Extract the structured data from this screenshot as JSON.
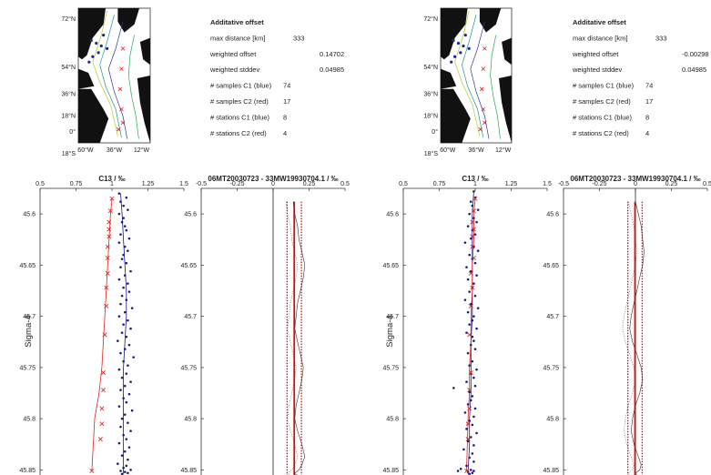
{
  "panels": [
    {
      "map": {
        "lat_ticks": [
          "72°N",
          "54°N",
          "36°N",
          "18°N",
          "0°",
          "18°S"
        ],
        "lon_ticks": [
          "60°W",
          "36°W",
          "12°W"
        ]
      },
      "stats": {
        "title": "Additative offset",
        "rows": [
          {
            "label": "max distance [km]",
            "value": "333"
          },
          {
            "label": "weighted offset",
            "value": "0.14702"
          },
          {
            "label": "weighted stddev",
            "value": "0.04985"
          },
          {
            "label": "# samples C1 (blue)",
            "value": "74"
          },
          {
            "label": "# samples C2 (red)",
            "value": "17"
          },
          {
            "label": "# stations C1 (blue)",
            "value": "8"
          },
          {
            "label": "# stations C2 (red)",
            "value": "4"
          }
        ]
      },
      "profile_title": "C13 / ‰",
      "offset_title": "06MT20030723 - 33MW19930704.1 / ‰",
      "ylabel": "Sigma-4"
    },
    {
      "map": {
        "lat_ticks": [
          "72°N",
          "54°N",
          "36°N",
          "18°N",
          "0°",
          "18°S"
        ],
        "lon_ticks": [
          "60°W",
          "36°W",
          "12°W"
        ]
      },
      "stats": {
        "title": "Additative offset",
        "rows": [
          {
            "label": "max distance [km]",
            "value": "333"
          },
          {
            "label": "weighted offset",
            "value": "-0.00298"
          },
          {
            "label": "weighted stddev",
            "value": "0.04985"
          },
          {
            "label": "# samples C1 (blue)",
            "value": "74"
          },
          {
            "label": "# samples C2 (red)",
            "value": "17"
          },
          {
            "label": "# stations C1 (blue)",
            "value": "8"
          },
          {
            "label": "# stations C2 (red)",
            "value": "4"
          }
        ]
      },
      "profile_title": "C13 / ‰",
      "offset_title": "06MT20030723 - 33MW19930704.1 / ‰",
      "ylabel": "Sigma-4"
    }
  ],
  "chart_data": [
    {
      "type": "scatter",
      "title": "C13 / ‰",
      "ylabel": "Sigma-4",
      "xlim": [
        0.5,
        1.5
      ],
      "ylim": [
        45.855,
        45.575
      ],
      "xticks": [
        "0.5",
        "0.75",
        "1",
        "1.25",
        "1.5"
      ],
      "yticks": [
        "45.6",
        "45.65",
        "45.7",
        "45.75",
        "45.8",
        "45.85"
      ],
      "series": [
        {
          "color": "#1a1a80",
          "marker": "dot",
          "x": [
            1.05,
            1.1,
            1.06,
            1.08,
            1.11,
            1.05,
            1.08,
            1.07,
            1.09,
            1.1,
            1.06,
            1.12,
            1.05,
            1.09,
            1.11,
            1.08,
            1.07,
            1.1,
            1.06,
            1.13,
            1.09,
            1.05,
            1.11,
            1.08,
            1.12,
            1.07,
            1.1,
            1.06,
            1.14,
            1.09,
            1.05,
            1.11,
            1.08,
            1.13,
            1.07,
            1.1,
            1.04,
            1.12,
            1.09,
            1.06,
            1.15,
            1.08,
            1.11,
            1.05,
            1.1,
            1.07,
            1.13,
            1.09,
            1.06,
            1.12,
            1.08,
            1.1,
            1.05,
            1.14,
            1.09,
            1.07,
            1.11,
            1.06,
            1.13,
            1.08,
            1.1,
            1.05,
            1.12,
            1.09,
            1.07,
            1.11,
            1.04,
            1.1,
            1.08,
            1.13,
            1.06,
            1.09,
            1.11,
            1.07
          ],
          "y": [
            45.58,
            45.584,
            45.588,
            45.592,
            45.596,
            45.6,
            45.604,
            45.608,
            45.612,
            45.616,
            45.62,
            45.624,
            45.628,
            45.632,
            45.636,
            45.64,
            45.644,
            45.648,
            45.652,
            45.656,
            45.66,
            45.664,
            45.668,
            45.672,
            45.676,
            45.68,
            45.684,
            45.688,
            45.692,
            45.696,
            45.7,
            45.704,
            45.708,
            45.712,
            45.716,
            45.72,
            45.724,
            45.728,
            45.732,
            45.736,
            45.74,
            45.744,
            45.748,
            45.752,
            45.756,
            45.76,
            45.764,
            45.768,
            45.772,
            45.776,
            45.78,
            45.784,
            45.788,
            45.792,
            45.796,
            45.8,
            45.804,
            45.808,
            45.812,
            45.816,
            45.82,
            45.824,
            45.828,
            45.832,
            45.836,
            45.84,
            45.844,
            45.846,
            45.848,
            45.85,
            45.851,
            45.852,
            45.853,
            45.854
          ]
        },
        {
          "color": "#dd2222",
          "marker": "x",
          "x": [
            1.0,
            0.99,
            0.98,
            0.98,
            0.98,
            0.97,
            0.97,
            0.97,
            0.96,
            0.96,
            0.95,
            0.94,
            0.94,
            0.93,
            0.93,
            0.92,
            0.86
          ],
          "y": [
            45.585,
            45.597,
            45.608,
            45.615,
            45.622,
            45.632,
            45.643,
            45.658,
            45.672,
            45.69,
            45.718,
            45.755,
            45.772,
            45.79,
            45.805,
            45.82,
            45.851
          ]
        }
      ],
      "fits": [
        {
          "color": "#1a1a80",
          "x": [
            1.06,
            1.07,
            1.08,
            1.09,
            1.1,
            1.1,
            1.09,
            1.08,
            1.08,
            1.08,
            1.08,
            1.08
          ],
          "y": [
            45.58,
            45.6,
            45.625,
            45.65,
            45.675,
            45.7,
            45.725,
            45.75,
            45.775,
            45.8,
            45.825,
            45.854
          ]
        },
        {
          "color": "#dd2222",
          "x": [
            1.0,
            0.99,
            0.98,
            0.97,
            0.96,
            0.95,
            0.94,
            0.93,
            0.91,
            0.88,
            0.86
          ],
          "y": [
            45.585,
            45.6,
            45.625,
            45.65,
            45.675,
            45.7,
            45.725,
            45.75,
            45.775,
            45.8,
            45.851
          ]
        }
      ]
    },
    {
      "type": "line",
      "title": "06MT20030723 - 33MW19930704.1 / ‰",
      "xlim": [
        -0.5,
        0.5
      ],
      "ylim": [
        45.855,
        45.575
      ],
      "xticks": [
        "-0.5",
        "-0.25",
        "0",
        "0.25",
        "0.5"
      ],
      "yticks": [
        "45.6",
        "45.65",
        "45.7",
        "45.75",
        "45.8",
        "45.85"
      ],
      "weighted_offset": 0.14702,
      "weighted_stddev": 0.04985,
      "std_lines": [
        0.09717,
        0.19687
      ],
      "sigma_range": [
        45.588,
        45.855
      ],
      "offset_profile": {
        "x": [
          0.14,
          0.15,
          0.17,
          0.18,
          0.2,
          0.22,
          0.21,
          0.19,
          0.17,
          0.16,
          0.15,
          0.17,
          0.19,
          0.21,
          0.2,
          0.18,
          0.16,
          0.15,
          0.17,
          0.2,
          0.22,
          0.2,
          0.18,
          0.16,
          0.15,
          0.17
        ],
        "y": [
          45.588,
          45.6,
          45.612,
          45.625,
          45.637,
          45.65,
          45.662,
          45.675,
          45.687,
          45.7,
          45.712,
          45.725,
          45.737,
          45.75,
          45.762,
          45.775,
          45.787,
          45.8,
          45.812,
          45.825,
          45.837,
          45.845,
          45.85,
          45.852,
          45.854,
          45.855
        ]
      }
    },
    {
      "type": "scatter",
      "title": "C13 / ‰",
      "ylabel": "Sigma-4",
      "xlim": [
        0.5,
        1.5
      ],
      "ylim": [
        45.855,
        45.575
      ],
      "xticks": [
        "0.5",
        "0.75",
        "1",
        "1.25",
        "1.5"
      ],
      "yticks": [
        "45.6",
        "45.65",
        "45.7",
        "45.75",
        "45.8",
        "45.85"
      ],
      "series": [
        {
          "color": "#1a1a80",
          "marker": "dot",
          "x": [
            0.99,
            1.0,
            0.97,
            0.98,
            1.02,
            0.96,
            0.99,
            1.01,
            0.95,
            0.98,
            1.0,
            0.97,
            0.93,
            0.99,
            1.02,
            0.96,
            0.98,
            1.0,
            0.94,
            0.97,
            1.01,
            0.95,
            0.99,
            0.98,
            0.96,
            1.0,
            0.93,
            0.97,
            1.02,
            0.95,
            0.99,
            0.98,
            0.96,
            1.01,
            0.94,
            0.98,
            0.99,
            0.97,
            1.0,
            0.95,
            0.85,
            0.98,
            0.96,
            1.01,
            0.97,
            0.99,
            0.94,
            1.0,
            0.96,
            0.98,
            0.97,
            0.95,
            1.0,
            0.93,
            0.99,
            0.96,
            0.98,
            0.94,
            1.01,
            0.97,
            0.95,
            0.99,
            0.92,
            0.98,
            0.96,
            0.99,
            0.94,
            0.9,
            0.97,
            0.99,
            0.95,
            0.98,
            0.96,
            0.88
          ],
          "y": [
            45.578,
            45.584,
            45.588,
            45.592,
            45.596,
            45.6,
            45.604,
            45.608,
            45.612,
            45.616,
            45.62,
            45.624,
            45.628,
            45.632,
            45.636,
            45.64,
            45.644,
            45.648,
            45.652,
            45.656,
            45.66,
            45.664,
            45.668,
            45.672,
            45.676,
            45.68,
            45.684,
            45.688,
            45.692,
            45.696,
            45.7,
            45.704,
            45.708,
            45.712,
            45.716,
            45.72,
            45.724,
            45.728,
            45.732,
            45.736,
            45.77,
            45.744,
            45.748,
            45.752,
            45.756,
            45.76,
            45.764,
            45.768,
            45.774,
            45.778,
            45.782,
            45.786,
            45.79,
            45.794,
            45.798,
            45.802,
            45.806,
            45.81,
            45.814,
            45.818,
            45.822,
            45.826,
            45.83,
            45.834,
            45.838,
            45.842,
            45.846,
            45.849,
            45.85,
            45.851,
            45.852,
            45.853,
            45.854,
            45.851
          ]
        },
        {
          "color": "#dd2222",
          "marker": "x",
          "x": [
            1.0,
            0.99,
            0.98,
            0.99,
            0.98,
            0.98,
            0.99,
            0.97,
            0.98,
            0.97,
            0.96,
            0.97,
            0.96,
            0.96,
            0.95,
            0.95,
            0.94
          ],
          "y": [
            45.585,
            45.597,
            45.608,
            45.615,
            45.622,
            45.632,
            45.643,
            45.658,
            45.672,
            45.69,
            45.718,
            45.755,
            45.772,
            45.79,
            45.805,
            45.82,
            45.851
          ]
        }
      ],
      "fits": [
        {
          "color": "#1a1a80",
          "x": [
            0.99,
            0.98,
            0.98,
            0.98,
            0.98,
            0.98,
            0.97,
            0.97,
            0.97,
            0.96,
            0.96,
            0.95
          ],
          "y": [
            45.578,
            45.6,
            45.625,
            45.65,
            45.675,
            45.7,
            45.725,
            45.75,
            45.775,
            45.8,
            45.825,
            45.854
          ]
        },
        {
          "color": "#dd2222",
          "x": [
            1.0,
            0.99,
            0.99,
            0.98,
            0.98,
            0.97,
            0.97,
            0.96,
            0.96,
            0.95,
            0.94
          ],
          "y": [
            45.585,
            45.6,
            45.625,
            45.65,
            45.675,
            45.7,
            45.725,
            45.75,
            45.775,
            45.8,
            45.851
          ]
        }
      ]
    },
    {
      "type": "line",
      "title": "06MT20030723 - 33MW19930704.1 / ‰",
      "xlim": [
        -0.5,
        0.5
      ],
      "ylim": [
        45.855,
        45.575
      ],
      "xticks": [
        "-0.5",
        "-0.25",
        "0",
        "0.25",
        "0.5"
      ],
      "yticks": [
        "45.6",
        "45.65",
        "45.7",
        "45.75",
        "45.8",
        "45.85"
      ],
      "weighted_offset": -0.00298,
      "weighted_stddev": 0.04985,
      "std_lines": [
        -0.05283,
        0.04687
      ],
      "sigma_range": [
        45.588,
        45.855
      ],
      "offset_profile": {
        "x": [
          0.0,
          0.02,
          0.04,
          0.05,
          0.06,
          0.05,
          0.03,
          0.01,
          -0.01,
          -0.03,
          -0.04,
          -0.02,
          0.01,
          0.04,
          0.05,
          0.03,
          0.0,
          -0.02,
          -0.03,
          -0.01,
          0.02,
          0.04,
          0.03,
          0.01,
          0.0,
          0.01
        ],
        "y": [
          45.588,
          45.6,
          45.612,
          45.625,
          45.637,
          45.65,
          45.662,
          45.675,
          45.687,
          45.7,
          45.712,
          45.725,
          45.737,
          45.75,
          45.762,
          45.775,
          45.787,
          45.8,
          45.812,
          45.825,
          45.837,
          45.845,
          45.85,
          45.852,
          45.854,
          45.855
        ]
      }
    }
  ]
}
